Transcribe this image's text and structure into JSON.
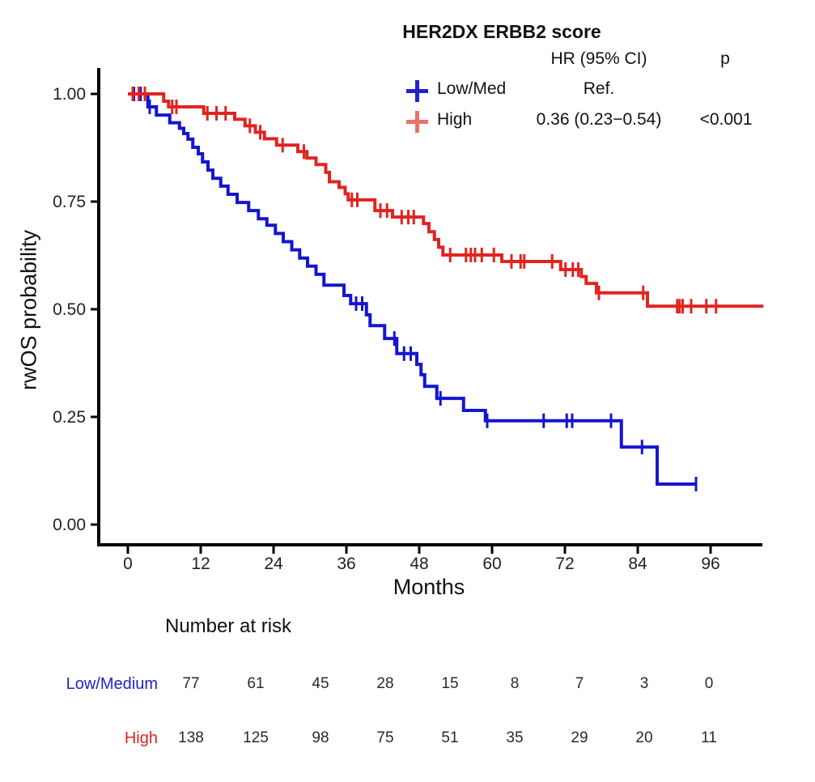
{
  "title": "HER2DX ERBB2 score",
  "legend": {
    "header_hr": "HR (95% CI)",
    "header_p": "p",
    "rows": [
      {
        "label": "Low/Med",
        "hr": "Ref.",
        "p": "",
        "symbol": "plus-icon",
        "symbol_color": "#2323cc"
      },
      {
        "label": "High",
        "hr": "0.36 (0.23−0.54)",
        "p": "<0.001",
        "symbol": "plus-icon",
        "symbol_color": "#e8726b"
      }
    ]
  },
  "axes": {
    "x_label": "Months",
    "y_label": "rwOS probability"
  },
  "risk_table": {
    "title": "Number at risk",
    "rows": [
      {
        "label": "Low/Medium",
        "color": "#2222cc",
        "values": [
          77,
          61,
          45,
          28,
          15,
          8,
          7,
          3,
          0
        ]
      },
      {
        "label": "High",
        "color": "#dd2222",
        "values": [
          138,
          125,
          98,
          75,
          51,
          35,
          29,
          20,
          11
        ]
      }
    ]
  },
  "chart_data": {
    "type": "line",
    "subtype": "kaplan-meier-step",
    "title": "HER2DX ERBB2 score",
    "xlabel": "Months",
    "ylabel": "rwOS probability",
    "xlim": [
      -5,
      105
    ],
    "ylim": [
      0,
      1
    ],
    "x_ticks": [
      0,
      12,
      24,
      36,
      48,
      60,
      72,
      84,
      96
    ],
    "y_ticks": [
      0,
      0.25,
      0.5,
      0.75,
      1
    ],
    "grid": false,
    "legend_position": "top-right",
    "series": [
      {
        "name": "Low/Med",
        "color": "#1515ce",
        "hr": "Ref.",
        "n_at_risk": [
          77,
          61,
          45,
          28,
          15,
          8,
          7,
          3,
          0
        ],
        "steps": [
          [
            0,
            1.0
          ],
          [
            3.3,
            0.97
          ],
          [
            4.7,
            0.951
          ],
          [
            6.9,
            0.933
          ],
          [
            8.5,
            0.92
          ],
          [
            9.2,
            0.908
          ],
          [
            9.9,
            0.895
          ],
          [
            10.7,
            0.876
          ],
          [
            11.6,
            0.861
          ],
          [
            12.3,
            0.842
          ],
          [
            13.2,
            0.823
          ],
          [
            14.0,
            0.804
          ],
          [
            15.3,
            0.786
          ],
          [
            16.5,
            0.767
          ],
          [
            18.0,
            0.748
          ],
          [
            19.9,
            0.729
          ],
          [
            21.5,
            0.71
          ],
          [
            22.9,
            0.695
          ],
          [
            24.3,
            0.676
          ],
          [
            25.6,
            0.657
          ],
          [
            27.0,
            0.638
          ],
          [
            28.3,
            0.619
          ],
          [
            29.6,
            0.6
          ],
          [
            31.0,
            0.581
          ],
          [
            32.3,
            0.556
          ],
          [
            35.6,
            0.532
          ],
          [
            36.7,
            0.513
          ],
          [
            39.3,
            0.487
          ],
          [
            39.9,
            0.462
          ],
          [
            42.3,
            0.432
          ],
          [
            44.3,
            0.397
          ],
          [
            47.6,
            0.372
          ],
          [
            48.3,
            0.348
          ],
          [
            48.9,
            0.321
          ],
          [
            50.9,
            0.293
          ],
          [
            55.3,
            0.265
          ],
          [
            58.9,
            0.241
          ],
          [
            81.3,
            0.18
          ],
          [
            87.2,
            0.094
          ],
          [
            93.6,
            0.094
          ]
        ],
        "censors": [
          [
            1.0,
            1.0
          ],
          [
            2.1,
            1.0
          ],
          [
            3.6,
            0.97
          ],
          [
            37.6,
            0.513
          ],
          [
            38.6,
            0.513
          ],
          [
            43.9,
            0.432
          ],
          [
            45.5,
            0.397
          ],
          [
            46.6,
            0.397
          ],
          [
            51.5,
            0.293
          ],
          [
            59.2,
            0.241
          ],
          [
            68.5,
            0.241
          ],
          [
            72.3,
            0.241
          ],
          [
            73.2,
            0.241
          ],
          [
            79.6,
            0.241
          ],
          [
            84.7,
            0.18
          ],
          [
            93.6,
            0.094
          ]
        ]
      },
      {
        "name": "High",
        "color": "#e02421",
        "hr": "0.36 (0.23−0.54)",
        "p": "<0.001",
        "n_at_risk": [
          138,
          125,
          98,
          75,
          51,
          35,
          29,
          20,
          11
        ],
        "steps": [
          [
            0,
            1.0
          ],
          [
            5.9,
            0.983
          ],
          [
            6.7,
            0.97
          ],
          [
            12.5,
            0.955
          ],
          [
            17.6,
            0.941
          ],
          [
            19.3,
            0.926
          ],
          [
            21.0,
            0.911
          ],
          [
            22.5,
            0.896
          ],
          [
            24.5,
            0.881
          ],
          [
            28.0,
            0.866
          ],
          [
            29.5,
            0.851
          ],
          [
            31.0,
            0.836
          ],
          [
            32.6,
            0.818
          ],
          [
            33.2,
            0.796
          ],
          [
            34.8,
            0.783
          ],
          [
            35.8,
            0.768
          ],
          [
            36.3,
            0.754
          ],
          [
            40.7,
            0.729
          ],
          [
            43.6,
            0.714
          ],
          [
            48.7,
            0.699
          ],
          [
            49.6,
            0.68
          ],
          [
            50.5,
            0.662
          ],
          [
            51.2,
            0.644
          ],
          [
            51.9,
            0.626
          ],
          [
            61.6,
            0.611
          ],
          [
            71.3,
            0.592
          ],
          [
            74.7,
            0.576
          ],
          [
            75.5,
            0.56
          ],
          [
            77.2,
            0.538
          ],
          [
            85.6,
            0.507
          ],
          [
            104.7,
            0.507
          ]
        ],
        "censors": [
          [
            0.8,
            1.0
          ],
          [
            1.8,
            1.0
          ],
          [
            2.8,
            1.0
          ],
          [
            7.3,
            0.97
          ],
          [
            8.0,
            0.97
          ],
          [
            13.1,
            0.955
          ],
          [
            14.6,
            0.955
          ],
          [
            16.1,
            0.955
          ],
          [
            20.1,
            0.926
          ],
          [
            21.8,
            0.911
          ],
          [
            25.5,
            0.881
          ],
          [
            29.0,
            0.866
          ],
          [
            36.9,
            0.754
          ],
          [
            37.8,
            0.754
          ],
          [
            41.6,
            0.729
          ],
          [
            42.7,
            0.729
          ],
          [
            45.1,
            0.714
          ],
          [
            46.2,
            0.714
          ],
          [
            47.1,
            0.714
          ],
          [
            53.1,
            0.626
          ],
          [
            55.7,
            0.626
          ],
          [
            56.5,
            0.626
          ],
          [
            57.2,
            0.626
          ],
          [
            58.3,
            0.626
          ],
          [
            60.3,
            0.626
          ],
          [
            63.2,
            0.611
          ],
          [
            64.7,
            0.611
          ],
          [
            65.3,
            0.611
          ],
          [
            69.9,
            0.611
          ],
          [
            72.1,
            0.592
          ],
          [
            73.3,
            0.592
          ],
          [
            74.2,
            0.592
          ],
          [
            77.6,
            0.538
          ],
          [
            84.9,
            0.538
          ],
          [
            90.5,
            0.507
          ],
          [
            90.9,
            0.507
          ],
          [
            91.4,
            0.507
          ],
          [
            92.8,
            0.507
          ],
          [
            95.3,
            0.507
          ],
          [
            96.9,
            0.507
          ]
        ]
      }
    ]
  }
}
